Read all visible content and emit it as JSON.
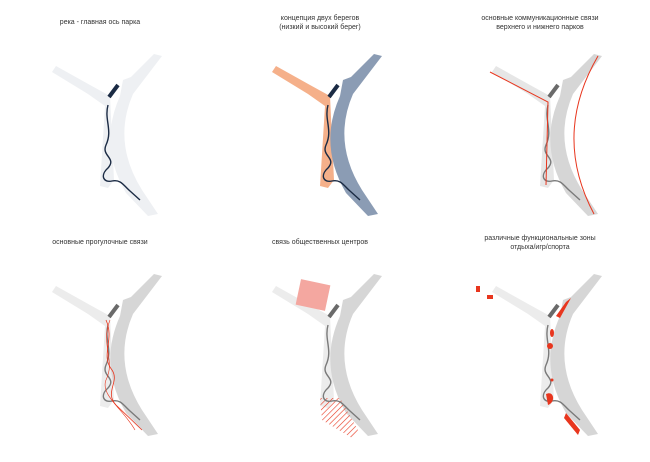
{
  "panels": [
    {
      "id": "river",
      "title_lines": [
        "река - главная ось парка"
      ]
    },
    {
      "id": "banks",
      "title_lines": [
        "концепция двух берегов",
        "(низкий и высокий берег)"
      ]
    },
    {
      "id": "communications",
      "title_lines": [
        "основные коммуникационные связи",
        "верхнего и нижнего парков"
      ]
    },
    {
      "id": "walks",
      "title_lines": [
        "основные прогулочные связи"
      ]
    },
    {
      "id": "public-centers",
      "title_lines": [
        "связь общественных центров"
      ]
    },
    {
      "id": "zones",
      "title_lines": [
        "различные функциональные зоны",
        "отдыха/игр/спорта"
      ]
    }
  ],
  "colors": {
    "river": "#1b2b44",
    "low_bank": "#f5b08a",
    "high_bank": "#8b9cb4",
    "bank_light": "#eef0f3",
    "bank_grey": "#d6d6d6",
    "accent_red": "#e8361e",
    "pink": "#f4a7a0"
  }
}
